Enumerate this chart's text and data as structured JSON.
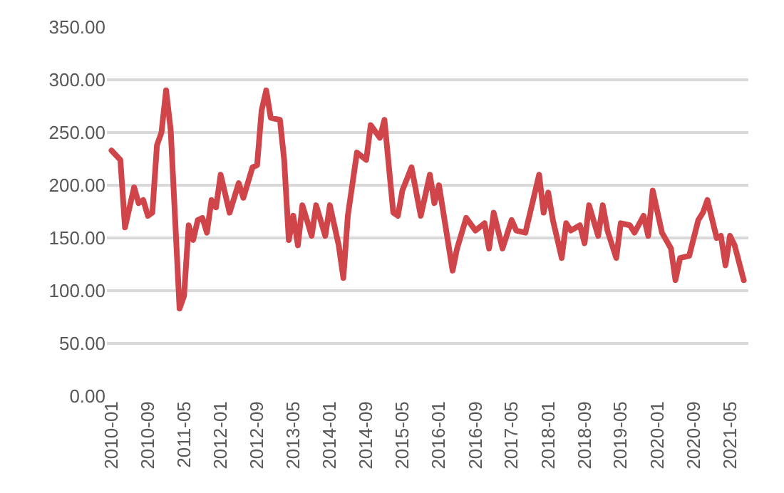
{
  "chart_data": {
    "type": "line",
    "x": [
      "2010-01",
      "2010-03",
      "2010-04",
      "2010-06",
      "2010-07",
      "2010-08",
      "2010-09",
      "2010-10",
      "2010-11",
      "2010-12",
      "2011-01",
      "2011-02",
      "2011-04",
      "2011-05",
      "2011-06",
      "2011-07",
      "2011-08",
      "2011-09",
      "2011-10",
      "2011-11",
      "2011-12",
      "2012-01",
      "2012-03",
      "2012-05",
      "2012-06",
      "2012-08",
      "2012-09",
      "2012-10",
      "2012-11",
      "2012-12",
      "2013-02",
      "2013-03",
      "2013-04",
      "2013-05",
      "2013-06",
      "2013-07",
      "2013-09",
      "2013-10",
      "2013-12",
      "2014-01",
      "2014-03",
      "2014-04",
      "2014-05",
      "2014-07",
      "2014-09",
      "2014-10",
      "2014-12",
      "2015-01",
      "2015-03",
      "2015-04",
      "2015-05",
      "2015-07",
      "2015-09",
      "2015-11",
      "2015-12",
      "2016-01",
      "2016-04",
      "2016-05",
      "2016-07",
      "2016-09",
      "2016-11",
      "2016-12",
      "2017-01",
      "2017-03",
      "2017-05",
      "2017-06",
      "2017-08",
      "2017-11",
      "2017-12",
      "2018-01",
      "2018-02",
      "2018-04",
      "2018-05",
      "2018-06",
      "2018-08",
      "2018-09",
      "2018-10",
      "2018-12",
      "2019-01",
      "2019-02",
      "2019-04",
      "2019-05",
      "2019-07",
      "2019-08",
      "2019-10",
      "2019-11",
      "2019-12",
      "2020-02",
      "2020-04",
      "2020-05",
      "2020-06",
      "2020-08",
      "2020-10",
      "2020-11",
      "2020-12",
      "2021-02",
      "2021-03",
      "2021-04",
      "2021-05",
      "2021-06",
      "2021-08"
    ],
    "series": [
      {
        "color": "#d0454a",
        "values": [
          233,
          224,
          160,
          198,
          183,
          186,
          171,
          174,
          238,
          250,
          290,
          252,
          83,
          95,
          162,
          148,
          167,
          169,
          155,
          186,
          179,
          210,
          174,
          202,
          188,
          217,
          219,
          271,
          290,
          264,
          262,
          224,
          148,
          171,
          143,
          181,
          152,
          181,
          152,
          181,
          143,
          112,
          171,
          231,
          224,
          257,
          245,
          262,
          174,
          171,
          195,
          217,
          171,
          210,
          183,
          200,
          119,
          140,
          169,
          157,
          164,
          140,
          174,
          140,
          167,
          157,
          155,
          210,
          174,
          193,
          167,
          131,
          164,
          157,
          162,
          145,
          181,
          152,
          181,
          157,
          131,
          164,
          162,
          155,
          171,
          152,
          195,
          155,
          140,
          110,
          131,
          133,
          167,
          174,
          186,
          150,
          152,
          124,
          152,
          143,
          110
        ]
      }
    ],
    "xlim": [
      "2009-12",
      "2021-09"
    ],
    "xticks": [
      "2010-01",
      "2010-09",
      "2011-05",
      "2012-01",
      "2012-09",
      "2013-05",
      "2014-01",
      "2014-09",
      "2015-05",
      "2016-01",
      "2016-09",
      "2017-05",
      "2018-01",
      "2018-09",
      "2019-05",
      "2020-01",
      "2020-09",
      "2021-05"
    ],
    "ylim": [
      0,
      350
    ],
    "yticks": [
      {
        "value": 0,
        "label": "0.00"
      },
      {
        "value": 50,
        "label": "50.00"
      },
      {
        "value": 100,
        "label": "100.00"
      },
      {
        "value": 150,
        "label": "150.00"
      },
      {
        "value": 200,
        "label": "200.00"
      },
      {
        "value": 250,
        "label": "250.00"
      },
      {
        "value": 300,
        "label": "300.00"
      },
      {
        "value": 350,
        "label": "350.00"
      }
    ],
    "grid": "y",
    "marker": "none",
    "line_style": "solid"
  }
}
